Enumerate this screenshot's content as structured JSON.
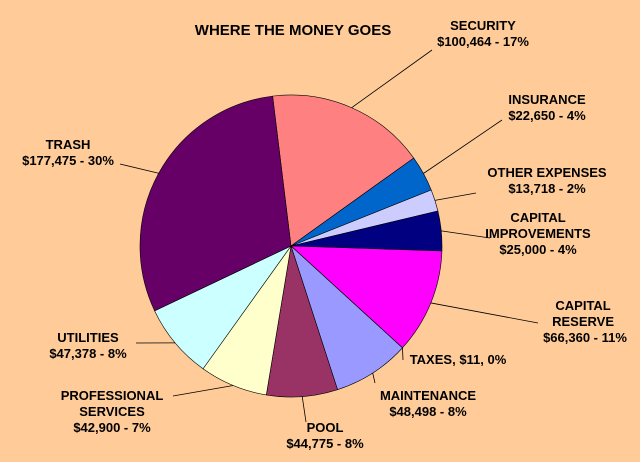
{
  "chart_data": {
    "type": "pie",
    "title": "WHERE THE MONEY GOES",
    "categories": [
      "SECURITY",
      "INSURANCE",
      "OTHER EXPENSES",
      "CAPITAL IMPROVEMENTS",
      "CAPITAL RESERVE",
      "TAXES,",
      "MAINTENANCE",
      "POOL",
      "PROFESSIONAL SERVICES",
      "UTILITIES",
      "TRASH"
    ],
    "values": [
      100464,
      22650,
      13718,
      25000,
      66360,
      11,
      48498,
      44775,
      42900,
      47378,
      177475
    ],
    "value_labels": [
      "$100,464  - 17%",
      "$22,650  - 4%",
      "$13,718  - 2%",
      "$25,000  - 4%",
      "$66,360  - 11%",
      "$11, 0%",
      "$48,498  - 8%",
      "$44,775  - 8%",
      "$42,900  - 7%",
      "$47,378  - 8%",
      "$177,475  - 30%"
    ],
    "colors": [
      "#ff8080",
      "#0066cc",
      "#ccccff",
      "#000080",
      "#ff00ff",
      "#800080",
      "#9999ff",
      "#993366",
      "#ffffcc",
      "#ccffff",
      "#660066"
    ]
  }
}
